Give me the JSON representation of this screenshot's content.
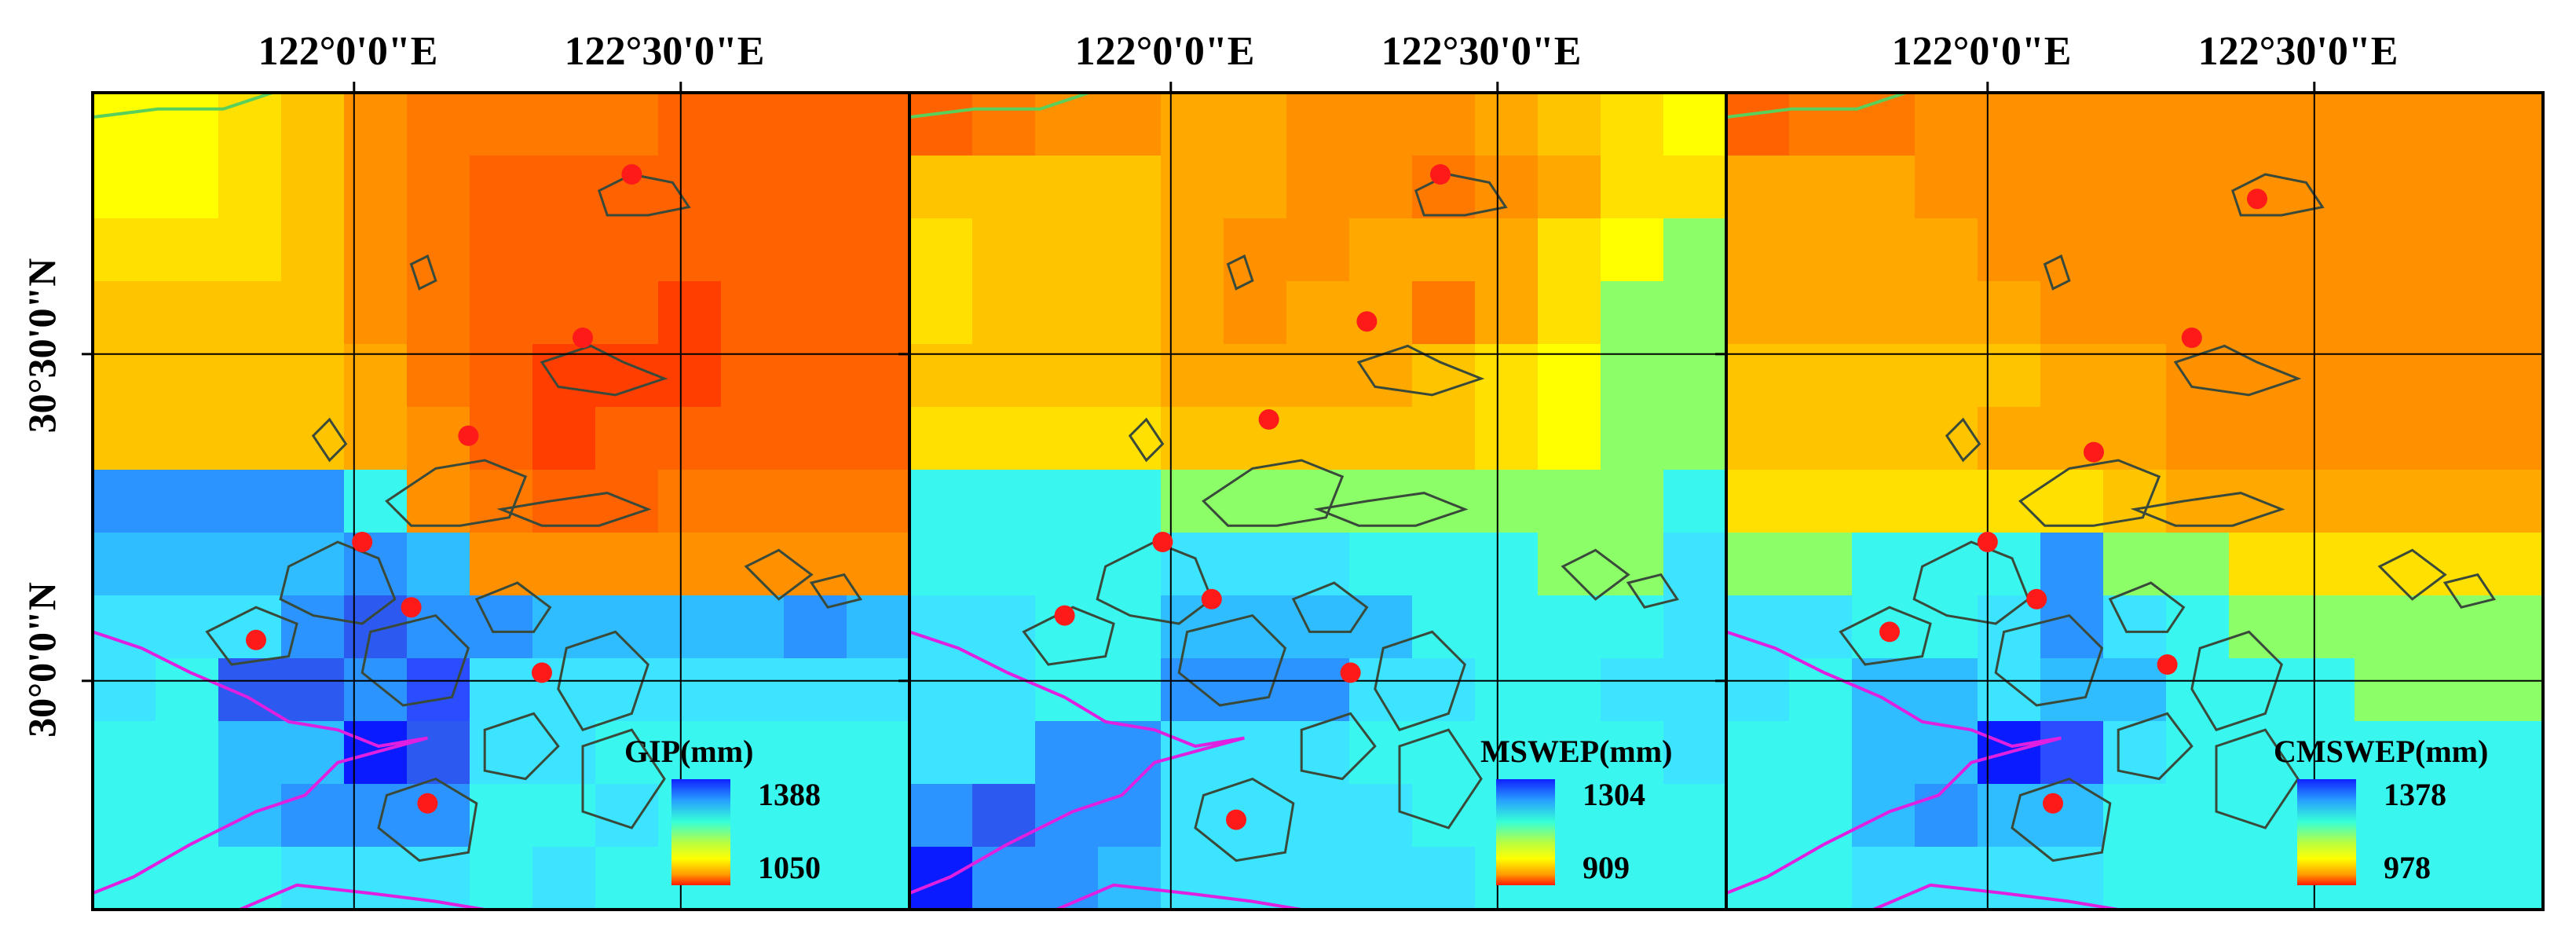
{
  "figure": {
    "lon_labels": [
      "122°0'0\"E",
      "122°30'0\"E"
    ],
    "lat_labels": [
      "30°30'0\"N",
      "30°0'0\"N"
    ]
  },
  "panels": [
    {
      "name": "gip",
      "legend_title": "GIP(mm)",
      "legend_max": "1388",
      "legend_min": "1050",
      "grid": [
        "AABCEFFFFGGGG",
        "AABCEFGGGGGGG",
        "BBBCEFGGGGGGG",
        "CCCCEFGGGHGGG",
        "CCCCDFGHHHGGG",
        "CCCCDEGHGGGGG",
        "PPPPMEFGGFFFF",
        "OOOOPOEEEEEEE",
        "NNNPRPPOOOOPO",
        "NMRRPQNNNNNNN",
        "MMOOSRNNMMMMM",
        "MMOPPPMMNMMMM",
        "MMMNNNMNMMMMM"
      ],
      "stations": [
        [
          0.66,
          0.1
        ],
        [
          0.6,
          0.3
        ],
        [
          0.46,
          0.42
        ],
        [
          0.33,
          0.55
        ],
        [
          0.39,
          0.63
        ],
        [
          0.2,
          0.67
        ],
        [
          0.55,
          0.71
        ],
        [
          0.41,
          0.87
        ]
      ]
    },
    {
      "name": "mswep",
      "legend_title": "MSWEP(mm)",
      "legend_max": "1304",
      "legend_min": "909",
      "grid": [
        "GFEEDDEEEDCBA",
        "CCCCDDEEFEDBB",
        "BCCCDEEDDDBAL",
        "BCCCDEDDFDBLL",
        "CCCCDDDDCBALL",
        "BBBBCCCCCBALL",
        "MMMMLLLLLLLLM",
        "MMMMNNNMMMLLN",
        "NNMMOOOOMMMMN",
        "NNMMPPPNNMMNN",
        "NNPPNNNMMMMMN",
        "PRPPNNNNMMMMM",
        "SPPONNNNNMMMM"
      ],
      "stations": [
        [
          0.65,
          0.1
        ],
        [
          0.56,
          0.28
        ],
        [
          0.44,
          0.4
        ],
        [
          0.31,
          0.55
        ],
        [
          0.37,
          0.62
        ],
        [
          0.19,
          0.64
        ],
        [
          0.54,
          0.71
        ],
        [
          0.4,
          0.89
        ]
      ]
    },
    {
      "name": "cmswep",
      "legend_title": "CMSWEP(mm)",
      "legend_max": "1378",
      "legend_min": "978",
      "grid": [
        "GFFEEEEEEEEEE",
        "DDDEEEEEEEEEE",
        "DDDDEEEEEEEEE",
        "DDDDDEEEEEEEE",
        "CCCCCDDEEEEEE",
        "CCCCDDDEEEEEE",
        "BBBBBBCDDDDDD",
        "LLMMMPLLBBBBB",
        "NNMMNPNMLLLLL",
        "NMOONOOMMMLLL",
        "MMOOSQNMMMMMM",
        "MMOPOOMMMMMMM",
        "MMNNNNMMMMMMM"
      ],
      "stations": [
        [
          0.65,
          0.13
        ],
        [
          0.57,
          0.3
        ],
        [
          0.45,
          0.44
        ],
        [
          0.32,
          0.55
        ],
        [
          0.38,
          0.62
        ],
        [
          0.2,
          0.66
        ],
        [
          0.54,
          0.7
        ],
        [
          0.4,
          0.87
        ]
      ]
    }
  ]
}
